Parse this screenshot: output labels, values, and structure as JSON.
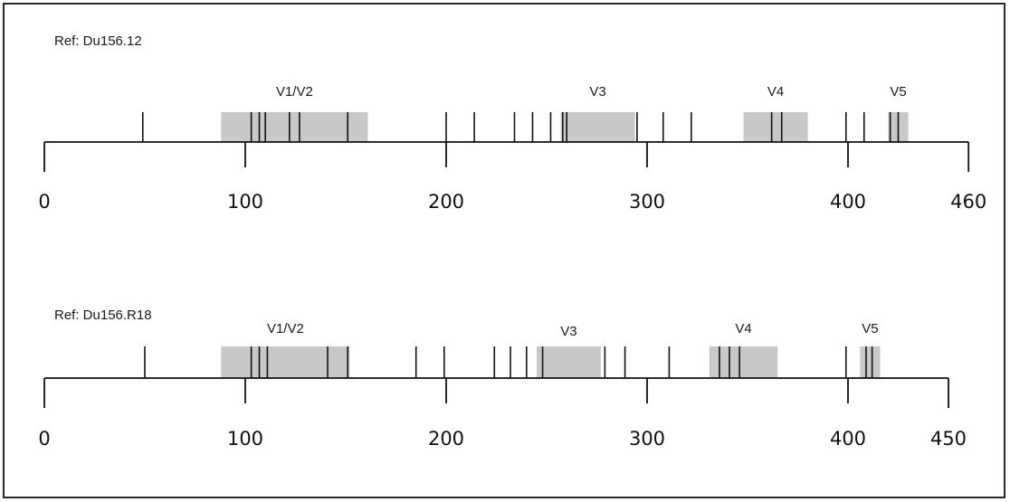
{
  "colors": {
    "region": "#c8c8c8",
    "line": "#111111"
  },
  "tracks": [
    {
      "ref": "Ref: Du156.12",
      "length": 460,
      "ticks": [
        0,
        100,
        200,
        300,
        400,
        460
      ],
      "regions": [
        {
          "label": "V1/V2",
          "start": 88,
          "end": 161
        },
        {
          "label": "V3",
          "start": 257,
          "end": 294
        },
        {
          "label": "V4",
          "start": 348,
          "end": 380
        },
        {
          "label": "V5",
          "start": 420,
          "end": 430
        }
      ],
      "mutations": [
        49,
        103,
        107,
        110,
        122,
        127,
        151,
        200,
        214,
        234,
        243,
        252,
        258,
        260,
        295,
        308,
        322,
        362,
        367,
        399,
        408,
        421,
        425
      ]
    },
    {
      "ref": "Ref: Du156.R18",
      "length": 450,
      "ticks": [
        0,
        100,
        200,
        300,
        400,
        450
      ],
      "regions": [
        {
          "label": "V1/V2",
          "start": 88,
          "end": 152
        },
        {
          "label": "V3",
          "start": 245,
          "end": 277
        },
        {
          "label": "V4",
          "start": 331,
          "end": 365
        },
        {
          "label": "V5",
          "start": 406,
          "end": 416
        }
      ],
      "mutations": [
        50,
        103,
        107,
        111,
        141,
        151,
        185,
        199,
        224,
        232,
        240,
        248,
        279,
        289,
        311,
        336,
        341,
        346,
        399,
        409,
        412
      ]
    }
  ]
}
